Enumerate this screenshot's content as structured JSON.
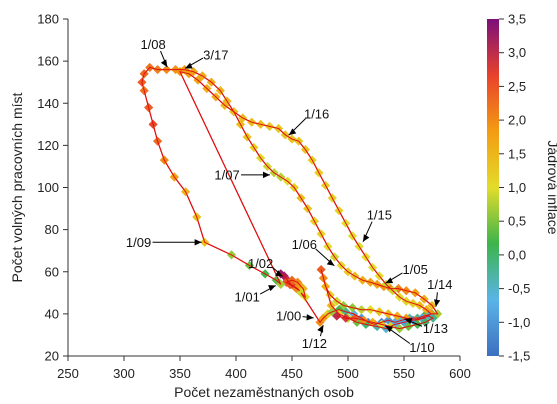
{
  "chart_data": {
    "type": "scatter",
    "xlabel": "Počet nezaměstnaných osob",
    "ylabel": "Počet volných pracovních míst",
    "xlim": [
      250,
      600
    ],
    "ylim": [
      20,
      180
    ],
    "xticks": [
      250,
      300,
      350,
      400,
      450,
      500,
      550,
      600
    ],
    "yticks": [
      20,
      40,
      60,
      80,
      100,
      120,
      140,
      160,
      180
    ],
    "grid": false,
    "colorbar": {
      "title": "Jádrová inflace",
      "range": [
        -1.5,
        3.5
      ],
      "ticks": [
        "3,5",
        "3,0",
        "2,5",
        "2,0",
        "1,5",
        "1,0",
        "0,5",
        "0,0",
        "-0,5",
        "-1,0",
        "-1,5"
      ],
      "tick_values": [
        3.5,
        3.0,
        2.5,
        2.0,
        1.5,
        1.0,
        0.5,
        0.0,
        -0.5,
        -1.0,
        -1.5
      ],
      "colors": [
        "#3d6fbf",
        "#5ab4e8",
        "#3cb44b",
        "#e3dc2a",
        "#f39c12",
        "#e8412c",
        "#7b0f7a"
      ]
    },
    "line_color": "#e01010",
    "points": [
      [
        440,
        59,
        3.3
      ],
      [
        443,
        58,
        3.2
      ],
      [
        446,
        56,
        3.0
      ],
      [
        449,
        54,
        3.0
      ],
      [
        452,
        53,
        2.8
      ],
      [
        455,
        52,
        2.5
      ],
      [
        457,
        51,
        2.2
      ],
      [
        454,
        52,
        2.0
      ],
      [
        448,
        54,
        2.4
      ],
      [
        445,
        55,
        2.5
      ],
      [
        450,
        56,
        2.3
      ],
      [
        455,
        55,
        2.0
      ],
      [
        458,
        53,
        1.8
      ],
      [
        460,
        52,
        1.5
      ],
      [
        462,
        48,
        1.0
      ],
      [
        458,
        50,
        0.9
      ],
      [
        475,
        36,
        2.0
      ],
      [
        478,
        38,
        1.8
      ],
      [
        482,
        40,
        1.2
      ],
      [
        486,
        41,
        0.6
      ],
      [
        492,
        42,
        0.2
      ],
      [
        498,
        41,
        -0.2
      ],
      [
        505,
        40,
        -0.6
      ],
      [
        512,
        38,
        -1.0
      ],
      [
        518,
        36,
        -1.2
      ],
      [
        524,
        35,
        -1.3
      ],
      [
        530,
        36,
        -1.2
      ],
      [
        536,
        37,
        -1.0
      ],
      [
        542,
        36,
        -0.8
      ],
      [
        548,
        37,
        -0.6
      ],
      [
        555,
        38,
        -0.4
      ],
      [
        562,
        38,
        -0.2
      ],
      [
        568,
        39,
        0.1
      ],
      [
        575,
        40,
        0.4
      ],
      [
        580,
        40,
        0.7
      ],
      [
        575,
        44,
        1.4
      ],
      [
        568,
        47,
        1.6
      ],
      [
        560,
        50,
        1.8
      ],
      [
        552,
        51,
        2.0
      ],
      [
        545,
        52,
        2.1
      ],
      [
        538,
        52,
        2.0
      ],
      [
        532,
        53,
        1.9
      ],
      [
        526,
        54,
        1.8
      ],
      [
        520,
        55,
        1.7
      ],
      [
        513,
        56,
        1.6
      ],
      [
        506,
        58,
        1.4
      ],
      [
        500,
        60,
        1.2
      ],
      [
        494,
        63,
        1.0
      ],
      [
        488,
        67,
        0.9
      ],
      [
        482,
        72,
        1.0
      ],
      [
        476,
        78,
        1.1
      ],
      [
        470,
        84,
        1.2
      ],
      [
        464,
        90,
        1.3
      ],
      [
        458,
        95,
        1.4
      ],
      [
        452,
        100,
        1.2
      ],
      [
        446,
        103,
        1.0
      ],
      [
        440,
        105,
        0.8
      ],
      [
        434,
        107,
        0.8
      ],
      [
        428,
        110,
        0.9
      ],
      [
        422,
        114,
        1.0
      ],
      [
        416,
        119,
        1.2
      ],
      [
        410,
        124,
        1.3
      ],
      [
        404,
        130,
        1.4
      ],
      [
        398,
        136,
        1.4
      ],
      [
        392,
        141,
        1.5
      ],
      [
        386,
        146,
        1.5
      ],
      [
        378,
        150,
        1.6
      ],
      [
        370,
        153,
        1.6
      ],
      [
        362,
        155,
        1.7
      ],
      [
        354,
        156,
        1.8
      ],
      [
        346,
        156,
        1.9
      ],
      [
        338,
        156,
        2.0
      ],
      [
        330,
        156,
        2.1
      ],
      [
        323,
        157,
        2.2
      ],
      [
        318,
        154,
        2.3
      ],
      [
        316,
        150,
        2.4
      ],
      [
        318,
        146,
        2.2
      ],
      [
        322,
        138,
        2.4
      ],
      [
        326,
        130,
        2.6
      ],
      [
        330,
        122,
        2.3
      ],
      [
        336,
        113,
        2.0
      ],
      [
        345,
        105,
        1.8
      ],
      [
        355,
        98,
        1.5
      ],
      [
        365,
        86,
        1.4
      ],
      [
        372,
        74,
        1.3
      ],
      [
        396,
        68,
        0.6
      ],
      [
        412,
        63,
        0.4
      ],
      [
        426,
        59,
        0.2
      ],
      [
        436,
        56,
        0.3
      ],
      [
        440,
        54,
        0.7
      ],
      [
        350,
        155,
        1.9
      ],
      [
        358,
        154,
        1.8
      ],
      [
        366,
        151,
        1.7
      ],
      [
        374,
        147,
        1.6
      ],
      [
        382,
        143,
        1.6
      ],
      [
        390,
        139,
        1.5
      ],
      [
        398,
        136,
        1.4
      ],
      [
        406,
        133,
        1.4
      ],
      [
        414,
        131,
        1.4
      ],
      [
        422,
        130,
        1.4
      ],
      [
        430,
        129,
        1.3
      ],
      [
        438,
        128,
        1.3
      ],
      [
        444,
        125,
        1.3
      ],
      [
        450,
        123,
        1.3
      ],
      [
        456,
        122,
        1.3
      ],
      [
        462,
        118,
        1.3
      ],
      [
        468,
        113,
        1.2
      ],
      [
        474,
        107,
        1.2
      ],
      [
        480,
        101,
        1.2
      ],
      [
        486,
        95,
        1.1
      ],
      [
        492,
        89,
        1.1
      ],
      [
        498,
        83,
        1.0
      ],
      [
        504,
        77,
        1.0
      ],
      [
        510,
        72,
        1.0
      ],
      [
        516,
        67,
        1.0
      ],
      [
        522,
        62,
        1.0
      ],
      [
        528,
        58,
        1.0
      ],
      [
        534,
        54,
        0.9
      ],
      [
        540,
        51,
        0.9
      ],
      [
        546,
        48,
        1.0
      ],
      [
        552,
        46,
        1.1
      ],
      [
        558,
        45,
        1.2
      ],
      [
        564,
        44,
        1.4
      ],
      [
        570,
        42,
        1.6
      ],
      [
        574,
        40,
        1.9
      ],
      [
        568,
        38,
        2.1
      ],
      [
        560,
        37,
        2.0
      ],
      [
        552,
        38,
        1.8
      ],
      [
        544,
        39,
        1.6
      ],
      [
        536,
        40,
        1.5
      ],
      [
        528,
        41,
        1.3
      ],
      [
        520,
        42,
        1.0
      ],
      [
        512,
        42,
        0.8
      ],
      [
        504,
        43,
        0.6
      ],
      [
        496,
        44,
        0.6
      ],
      [
        490,
        46,
        0.9
      ],
      [
        484,
        49,
        1.2
      ],
      [
        480,
        53,
        1.6
      ],
      [
        478,
        57,
        2.0
      ],
      [
        476,
        61,
        2.4
      ],
      [
        485,
        44,
        1.5
      ],
      [
        492,
        40,
        1.2
      ],
      [
        500,
        38,
        0.8
      ],
      [
        508,
        36,
        0.4
      ],
      [
        516,
        35,
        0.0
      ],
      [
        526,
        34,
        -0.3
      ],
      [
        534,
        33,
        -0.5
      ],
      [
        542,
        35,
        -0.7
      ],
      [
        550,
        36,
        -0.9
      ],
      [
        558,
        37,
        -1.0
      ],
      [
        566,
        38,
        -0.8
      ],
      [
        572,
        39,
        -0.5
      ],
      [
        576,
        38,
        -0.2
      ],
      [
        569,
        36,
        0.0
      ],
      [
        562,
        35,
        0.2
      ],
      [
        554,
        34,
        0.4
      ],
      [
        546,
        33,
        0.6
      ],
      [
        538,
        34,
        0.9
      ],
      [
        530,
        35,
        1.2
      ],
      [
        522,
        36,
        1.6
      ],
      [
        514,
        37,
        2.0
      ],
      [
        506,
        38,
        2.4
      ],
      [
        498,
        38,
        2.8
      ],
      [
        490,
        39,
        3.0
      ]
    ],
    "annotations": [
      {
        "label": "1/08",
        "point": [
          340,
          156
        ],
        "text_pos": [
          326,
          168
        ],
        "anchor": "middle"
      },
      {
        "label": "3/17",
        "point": [
          352,
          156
        ],
        "text_pos": [
          382,
          163
        ],
        "anchor": "middle"
      },
      {
        "label": "1/16",
        "point": [
          445,
          124
        ],
        "text_pos": [
          472,
          135
        ],
        "anchor": "middle"
      },
      {
        "label": "1/07",
        "point": [
          433,
          106
        ],
        "text_pos": [
          392,
          106
        ],
        "anchor": "middle"
      },
      {
        "label": "1/15",
        "point": [
          512,
          73
        ],
        "text_pos": [
          528,
          87
        ],
        "anchor": "middle"
      },
      {
        "label": "1/09",
        "point": [
          372,
          74
        ],
        "text_pos": [
          313,
          74
        ],
        "anchor": "middle"
      },
      {
        "label": "1/06",
        "point": [
          490,
          62
        ],
        "text_pos": [
          461,
          73
        ],
        "anchor": "middle"
      },
      {
        "label": "1/02",
        "point": [
          444,
          57
        ],
        "text_pos": [
          422,
          64
        ],
        "anchor": "middle"
      },
      {
        "label": "1/05",
        "point": [
          531,
          54
        ],
        "text_pos": [
          560,
          61
        ],
        "anchor": "middle"
      },
      {
        "label": "1/14",
        "point": [
          578,
          42
        ],
        "text_pos": [
          582,
          54
        ],
        "anchor": "middle"
      },
      {
        "label": "1/01",
        "point": [
          438,
          54
        ],
        "text_pos": [
          410,
          48
        ],
        "anchor": "middle"
      },
      {
        "label": "1/00",
        "point": [
          472,
          38
        ],
        "text_pos": [
          447,
          39
        ],
        "anchor": "middle"
      },
      {
        "label": "1/13",
        "point": [
          548,
          38
        ],
        "text_pos": [
          578,
          33
        ],
        "anchor": "middle"
      },
      {
        "label": "1/12",
        "point": [
          479,
          36
        ],
        "text_pos": [
          470,
          26
        ],
        "anchor": "middle"
      },
      {
        "label": "1/10",
        "point": [
          531,
          35
        ],
        "text_pos": [
          566,
          24
        ],
        "anchor": "middle"
      }
    ]
  }
}
